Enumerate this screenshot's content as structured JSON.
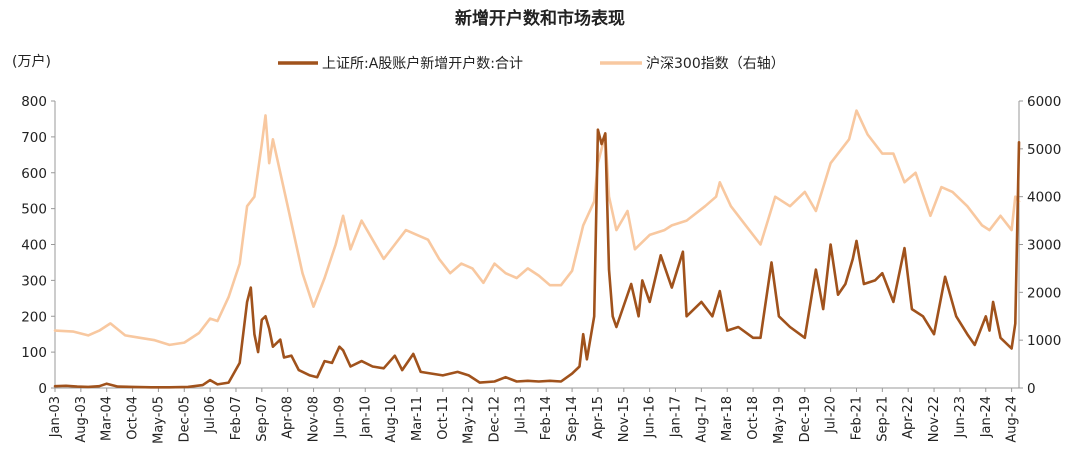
{
  "chart_data": {
    "type": "line",
    "title": "新增开户数和市场表现",
    "left_unit": "(万户)",
    "yleft": {
      "min": 0,
      "max": 800,
      "ticks": [
        0,
        100,
        200,
        300,
        400,
        500,
        600,
        700,
        800
      ]
    },
    "yright": {
      "min": 0,
      "max": 6000,
      "ticks": [
        0,
        1000,
        2000,
        3000,
        4000,
        5000,
        6000
      ]
    },
    "x_start": "2003-01",
    "x_end": "2024-10",
    "x_ticks": [
      "Jan-03",
      "Aug-03",
      "Mar-04",
      "Oct-04",
      "May-05",
      "Dec-05",
      "Jul-06",
      "Feb-07",
      "Sep-07",
      "Apr-08",
      "Nov-08",
      "Jun-09",
      "Jan-10",
      "Aug-10",
      "Mar-11",
      "Oct-11",
      "May-12",
      "Dec-12",
      "Jul-13",
      "Feb-14",
      "Sep-14",
      "Apr-15",
      "Nov-15",
      "Jun-16",
      "Jan-17",
      "Aug-17",
      "Mar-18",
      "Oct-18",
      "May-19",
      "Dec-19",
      "Jul-20",
      "Feb-21",
      "Sep-21",
      "Apr-22",
      "Nov-22",
      "Jun-23",
      "Jan-24",
      "Aug-24"
    ],
    "grid": false,
    "legend_position": "top",
    "series": [
      {
        "name": "上证所:A股账户新增开户数:合计",
        "axis": "left",
        "color": "#A0521C",
        "points": [
          [
            "2003-01",
            5
          ],
          [
            "2003-04",
            6
          ],
          [
            "2003-07",
            4
          ],
          [
            "2003-10",
            3
          ],
          [
            "2004-01",
            5
          ],
          [
            "2004-03",
            12
          ],
          [
            "2004-06",
            4
          ],
          [
            "2004-10",
            3
          ],
          [
            "2005-03",
            2
          ],
          [
            "2005-08",
            2
          ],
          [
            "2006-01",
            3
          ],
          [
            "2006-05",
            8
          ],
          [
            "2006-07",
            22
          ],
          [
            "2006-09",
            10
          ],
          [
            "2006-12",
            15
          ],
          [
            "2007-03",
            70
          ],
          [
            "2007-05",
            240
          ],
          [
            "2007-06",
            280
          ],
          [
            "2007-07",
            150
          ],
          [
            "2007-08",
            100
          ],
          [
            "2007-09",
            190
          ],
          [
            "2007-10",
            200
          ],
          [
            "2007-11",
            165
          ],
          [
            "2007-12",
            115
          ],
          [
            "2008-02",
            135
          ],
          [
            "2008-03",
            85
          ],
          [
            "2008-05",
            90
          ],
          [
            "2008-07",
            50
          ],
          [
            "2008-10",
            35
          ],
          [
            "2008-12",
            30
          ],
          [
            "2009-02",
            75
          ],
          [
            "2009-04",
            70
          ],
          [
            "2009-06",
            115
          ],
          [
            "2009-07",
            105
          ],
          [
            "2009-09",
            60
          ],
          [
            "2009-12",
            75
          ],
          [
            "2010-03",
            60
          ],
          [
            "2010-06",
            55
          ],
          [
            "2010-09",
            90
          ],
          [
            "2010-11",
            50
          ],
          [
            "2011-02",
            95
          ],
          [
            "2011-04",
            45
          ],
          [
            "2011-07",
            40
          ],
          [
            "2011-10",
            35
          ],
          [
            "2012-02",
            45
          ],
          [
            "2012-05",
            35
          ],
          [
            "2012-08",
            15
          ],
          [
            "2012-12",
            18
          ],
          [
            "2013-03",
            30
          ],
          [
            "2013-06",
            18
          ],
          [
            "2013-09",
            20
          ],
          [
            "2013-12",
            18
          ],
          [
            "2014-03",
            20
          ],
          [
            "2014-06",
            18
          ],
          [
            "2014-09",
            40
          ],
          [
            "2014-11",
            60
          ],
          [
            "2014-12",
            150
          ],
          [
            "2015-01",
            80
          ],
          [
            "2015-03",
            200
          ],
          [
            "2015-04",
            720
          ],
          [
            "2015-05",
            680
          ],
          [
            "2015-06",
            710
          ],
          [
            "2015-07",
            330
          ],
          [
            "2015-08",
            200
          ],
          [
            "2015-09",
            170
          ],
          [
            "2016-01",
            290
          ],
          [
            "2016-03",
            200
          ],
          [
            "2016-04",
            300
          ],
          [
            "2016-06",
            240
          ],
          [
            "2016-09",
            370
          ],
          [
            "2016-12",
            280
          ],
          [
            "2017-03",
            380
          ],
          [
            "2017-04",
            200
          ],
          [
            "2017-08",
            240
          ],
          [
            "2017-11",
            200
          ],
          [
            "2018-01",
            270
          ],
          [
            "2018-03",
            160
          ],
          [
            "2018-06",
            170
          ],
          [
            "2018-10",
            140
          ],
          [
            "2018-12",
            140
          ],
          [
            "2019-03",
            350
          ],
          [
            "2019-05",
            200
          ],
          [
            "2019-08",
            170
          ],
          [
            "2019-12",
            140
          ],
          [
            "2020-03",
            330
          ],
          [
            "2020-05",
            220
          ],
          [
            "2020-07",
            400
          ],
          [
            "2020-09",
            260
          ],
          [
            "2020-11",
            290
          ],
          [
            "2021-01",
            360
          ],
          [
            "2021-02",
            410
          ],
          [
            "2021-04",
            290
          ],
          [
            "2021-07",
            300
          ],
          [
            "2021-09",
            320
          ],
          [
            "2021-12",
            240
          ],
          [
            "2022-03",
            390
          ],
          [
            "2022-05",
            220
          ],
          [
            "2022-08",
            200
          ],
          [
            "2022-11",
            150
          ],
          [
            "2023-02",
            310
          ],
          [
            "2023-05",
            200
          ],
          [
            "2023-08",
            150
          ],
          [
            "2023-10",
            120
          ],
          [
            "2024-01",
            200
          ],
          [
            "2024-02",
            160
          ],
          [
            "2024-03",
            240
          ],
          [
            "2024-05",
            140
          ],
          [
            "2024-08",
            110
          ],
          [
            "2024-09",
            180
          ],
          [
            "2024-10",
            685
          ]
        ]
      },
      {
        "name": "沪深300指数（右轴）",
        "axis": "right",
        "color": "#F8C8A0",
        "points": [
          [
            "2003-01",
            1200
          ],
          [
            "2003-06",
            1180
          ],
          [
            "2003-10",
            1100
          ],
          [
            "2004-01",
            1200
          ],
          [
            "2004-04",
            1350
          ],
          [
            "2004-08",
            1100
          ],
          [
            "2004-12",
            1050
          ],
          [
            "2005-04",
            1000
          ],
          [
            "2005-08",
            900
          ],
          [
            "2005-12",
            950
          ],
          [
            "2006-04",
            1150
          ],
          [
            "2006-07",
            1450
          ],
          [
            "2006-09",
            1400
          ],
          [
            "2006-12",
            1900
          ],
          [
            "2007-03",
            2600
          ],
          [
            "2007-05",
            3800
          ],
          [
            "2007-07",
            4000
          ],
          [
            "2007-09",
            5100
          ],
          [
            "2007-10",
            5700
          ],
          [
            "2007-11",
            4700
          ],
          [
            "2007-12",
            5200
          ],
          [
            "2008-02",
            4500
          ],
          [
            "2008-04",
            3800
          ],
          [
            "2008-06",
            3100
          ],
          [
            "2008-08",
            2400
          ],
          [
            "2008-11",
            1700
          ],
          [
            "2009-02",
            2300
          ],
          [
            "2009-05",
            3000
          ],
          [
            "2009-07",
            3600
          ],
          [
            "2009-09",
            2900
          ],
          [
            "2009-12",
            3500
          ],
          [
            "2010-03",
            3100
          ],
          [
            "2010-06",
            2700
          ],
          [
            "2010-09",
            3000
          ],
          [
            "2010-12",
            3300
          ],
          [
            "2011-03",
            3200
          ],
          [
            "2011-06",
            3100
          ],
          [
            "2011-09",
            2700
          ],
          [
            "2011-12",
            2400
          ],
          [
            "2012-03",
            2600
          ],
          [
            "2012-06",
            2500
          ],
          [
            "2012-09",
            2200
          ],
          [
            "2012-12",
            2600
          ],
          [
            "2013-03",
            2400
          ],
          [
            "2013-06",
            2300
          ],
          [
            "2013-09",
            2500
          ],
          [
            "2013-12",
            2350
          ],
          [
            "2014-03",
            2150
          ],
          [
            "2014-06",
            2150
          ],
          [
            "2014-09",
            2450
          ],
          [
            "2014-12",
            3400
          ],
          [
            "2015-03",
            3900
          ],
          [
            "2015-04",
            4700
          ],
          [
            "2015-06",
            5300
          ],
          [
            "2015-07",
            4000
          ],
          [
            "2015-09",
            3300
          ],
          [
            "2015-12",
            3700
          ],
          [
            "2016-02",
            2900
          ],
          [
            "2016-06",
            3200
          ],
          [
            "2016-10",
            3300
          ],
          [
            "2016-12",
            3400
          ],
          [
            "2017-04",
            3500
          ],
          [
            "2017-09",
            3800
          ],
          [
            "2017-12",
            4000
          ],
          [
            "2018-01",
            4300
          ],
          [
            "2018-04",
            3800
          ],
          [
            "2018-08",
            3400
          ],
          [
            "2018-12",
            3000
          ],
          [
            "2019-04",
            4000
          ],
          [
            "2019-08",
            3800
          ],
          [
            "2019-12",
            4100
          ],
          [
            "2020-03",
            3700
          ],
          [
            "2020-07",
            4700
          ],
          [
            "2020-12",
            5200
          ],
          [
            "2021-02",
            5800
          ],
          [
            "2021-05",
            5300
          ],
          [
            "2021-09",
            4900
          ],
          [
            "2021-12",
            4900
          ],
          [
            "2022-03",
            4300
          ],
          [
            "2022-06",
            4500
          ],
          [
            "2022-10",
            3600
          ],
          [
            "2023-01",
            4200
          ],
          [
            "2023-04",
            4100
          ],
          [
            "2023-08",
            3800
          ],
          [
            "2023-12",
            3400
          ],
          [
            "2024-02",
            3300
          ],
          [
            "2024-05",
            3600
          ],
          [
            "2024-08",
            3300
          ],
          [
            "2024-09",
            4000
          ],
          [
            "2024-10",
            3900
          ]
        ]
      }
    ]
  }
}
